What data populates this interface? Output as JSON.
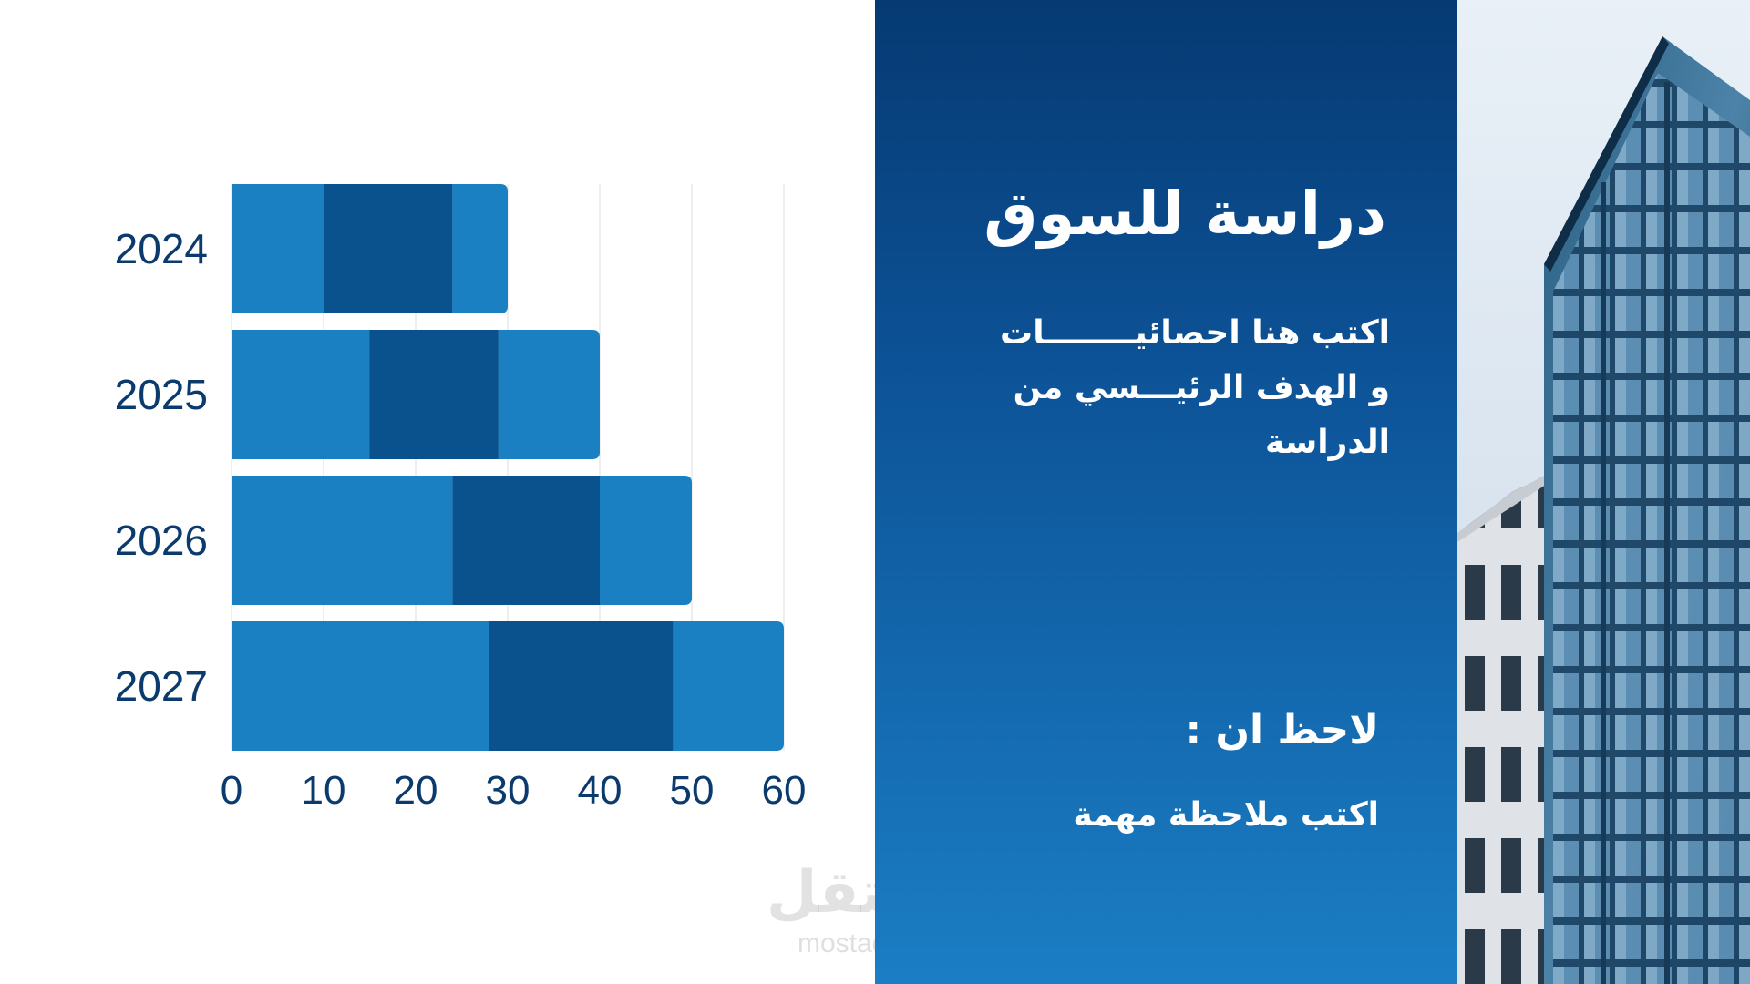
{
  "chart_data": {
    "type": "bar",
    "orientation": "horizontal",
    "stacked": true,
    "categories": [
      "2024",
      "2025",
      "2026",
      "2027"
    ],
    "series": [
      {
        "values": [
          10,
          15,
          24,
          28
        ]
      },
      {
        "values": [
          14,
          14,
          16,
          20
        ]
      },
      {
        "values": [
          6,
          11,
          10,
          12
        ]
      }
    ],
    "x_ticks": [
      "0",
      "10",
      "20",
      "30",
      "40",
      "50",
      "60"
    ],
    "xlim": [
      0,
      60
    ],
    "grid": true,
    "title": "",
    "xlabel": "",
    "ylabel": ""
  },
  "colors": {
    "series": [
      "#1b80c2",
      "#0a528e",
      "#1b80c2"
    ],
    "axis_text": "#0b3a6d",
    "panel_top": "#063a73",
    "panel_bottom": "#1b7ec4"
  },
  "panel": {
    "title": "دراسة للسوق",
    "description_lines": [
      "اكتب هنا احصائيــــــــات",
      "و  الهدف الرئيـــسي من",
      "الدراسة"
    ],
    "note_title": "لاحظ ان :",
    "note_text": "اكتب ملاحظة مهمة"
  },
  "watermark": {
    "logo": "مستقل",
    "url": "mostaql.com"
  },
  "photo": {
    "icon": "building-photo"
  }
}
